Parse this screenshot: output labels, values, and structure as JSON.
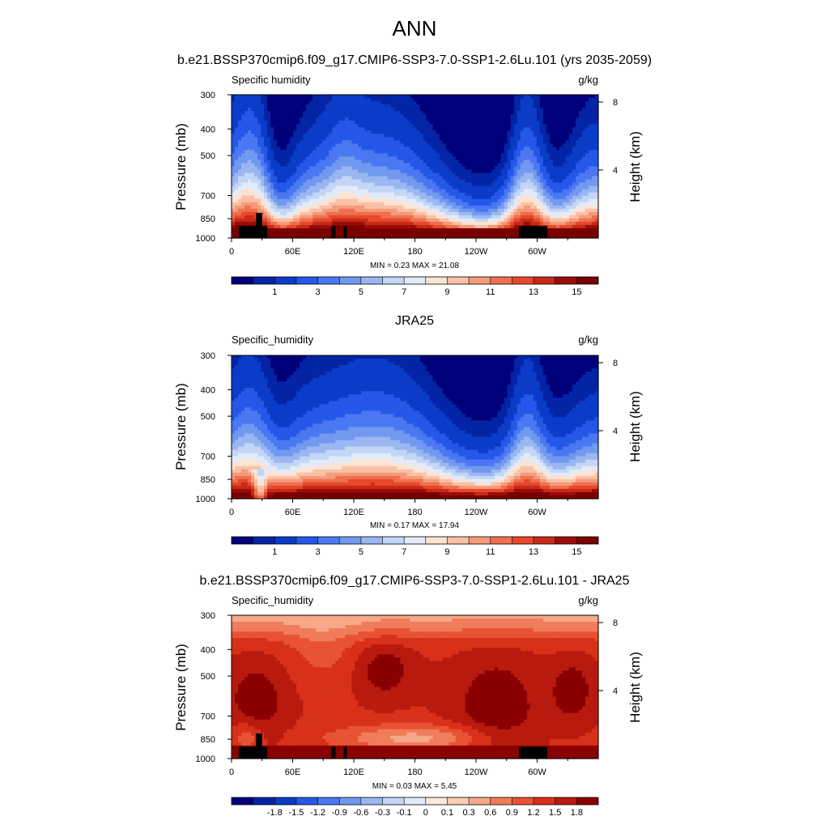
{
  "figure": {
    "title": "ANN",
    "palette_specific_humidity": [
      "#00007a",
      "#0424a6",
      "#0a3cc8",
      "#2557e8",
      "#4a78f2",
      "#7299f0",
      "#9bb7f2",
      "#c3d6f6",
      "#e2ebfa",
      "#fce3d3",
      "#f9c1a6",
      "#f49b7a",
      "#ee7050",
      "#e6492b",
      "#c92a18",
      "#9a0d0a",
      "#7a0000"
    ],
    "palette_difference": [
      "#00007a",
      "#0424a6",
      "#0a3cc8",
      "#2557e8",
      "#4a78f2",
      "#7299f0",
      "#9bb7f2",
      "#c3d6f6",
      "#e2ebfa",
      "#fde8dc",
      "#fbcdb4",
      "#f6a889",
      "#f07c5a",
      "#e85333",
      "#d9301a",
      "#b81a0e",
      "#8a0000"
    ],
    "topography_color": "#000000"
  },
  "chart_data": [
    {
      "type": "heatmap",
      "title": "b.e21.BSSP370cmip6.f09_g17.CMIP6-SSP3-7.0-SSP1-2.6Lu.101 (yrs 2035-2059)",
      "left_label": "Specific humidity",
      "right_label": "g/kg",
      "ylabel": "Pressure (mb)",
      "ylabel_right": "Height (km)",
      "x_ticks": [
        "0",
        "60E",
        "120E",
        "180",
        "120W",
        "60W"
      ],
      "x_tick_values": [
        0,
        60,
        120,
        180,
        240,
        300
      ],
      "xlim": [
        0,
        360
      ],
      "y_ticks": [
        "300",
        "400",
        "500",
        "700",
        "850",
        "1000"
      ],
      "y_tick_values": [
        300,
        400,
        500,
        700,
        850,
        1000
      ],
      "ylim": [
        300,
        1000
      ],
      "y_scale": "log",
      "y_right_ticks": [
        "8",
        "4"
      ],
      "y_right_tick_values": [
        8,
        4
      ],
      "stats_text": "MIN =   0.23  MAX =  21.08",
      "min": 0.23,
      "max": 21.08,
      "colorbar_labels": [
        "1",
        "3",
        "5",
        "7",
        "9",
        "11",
        "13",
        "15"
      ],
      "colorbar_label_levels": [
        1,
        3,
        5,
        7,
        9,
        11,
        13,
        15
      ],
      "levels": [
        0.5,
        1,
        2,
        3,
        4,
        5,
        6,
        7,
        8,
        9,
        10,
        11,
        12,
        13,
        14,
        15
      ],
      "field": "humidity",
      "has_topography": true
    },
    {
      "type": "heatmap",
      "title": "JRA25",
      "left_label": "Specific_humidity",
      "right_label": "g/kg",
      "ylabel": "Pressure (mb)",
      "ylabel_right": "Height (km)",
      "x_ticks": [
        "0",
        "60E",
        "120E",
        "180",
        "120W",
        "60W"
      ],
      "x_tick_values": [
        0,
        60,
        120,
        180,
        240,
        300
      ],
      "xlim": [
        0,
        360
      ],
      "y_ticks": [
        "300",
        "400",
        "500",
        "700",
        "850",
        "1000"
      ],
      "y_tick_values": [
        300,
        400,
        500,
        700,
        850,
        1000
      ],
      "ylim": [
        300,
        1000
      ],
      "y_scale": "log",
      "y_right_ticks": [
        "8",
        "4"
      ],
      "y_right_tick_values": [
        8,
        4
      ],
      "stats_text": "MIN =   0.17  MAX =  17.94",
      "min": 0.17,
      "max": 17.94,
      "colorbar_labels": [
        "1",
        "3",
        "5",
        "7",
        "9",
        "11",
        "13",
        "15"
      ],
      "colorbar_label_levels": [
        1,
        3,
        5,
        7,
        9,
        11,
        13,
        15
      ],
      "levels": [
        0.5,
        1,
        2,
        3,
        4,
        5,
        6,
        7,
        8,
        9,
        10,
        11,
        12,
        13,
        14,
        15
      ],
      "field": "humidity_obs",
      "has_topography": false
    },
    {
      "type": "heatmap",
      "title": "b.e21.BSSP370cmip6.f09_g17.CMIP6-SSP3-7.0-SSP1-2.6Lu.101 - JRA25",
      "left_label": "Specific_humidity",
      "right_label": "g/kg",
      "ylabel": "Pressure (mb)",
      "ylabel_right": "Height (km)",
      "x_ticks": [
        "0",
        "60E",
        "120E",
        "180",
        "120W",
        "60W"
      ],
      "x_tick_values": [
        0,
        60,
        120,
        180,
        240,
        300
      ],
      "xlim": [
        0,
        360
      ],
      "y_ticks": [
        "300",
        "400",
        "500",
        "700",
        "850",
        "1000"
      ],
      "y_tick_values": [
        300,
        400,
        500,
        700,
        850,
        1000
      ],
      "ylim": [
        300,
        1000
      ],
      "y_scale": "log",
      "y_right_ticks": [
        "8",
        "4"
      ],
      "y_right_tick_values": [
        8,
        4
      ],
      "stats_text": "MIN =   0.03  MAX =   5.45",
      "min": 0.03,
      "max": 5.45,
      "colorbar_labels": [
        "-1.8",
        "-1.5",
        "-1.2",
        "-0.9",
        "-0.6",
        "-0.3",
        "-0.1",
        "0",
        "0.1",
        "0.3",
        "0.6",
        "0.9",
        "1.2",
        "1.5",
        "1.8"
      ],
      "colorbar_label_levels": [
        -1.8,
        -1.5,
        -1.2,
        -0.9,
        -0.6,
        -0.3,
        -0.1,
        0,
        0.1,
        0.3,
        0.6,
        0.9,
        1.2,
        1.5,
        1.8
      ],
      "levels": [
        -2.1,
        -1.8,
        -1.5,
        -1.2,
        -0.9,
        -0.6,
        -0.3,
        -0.1,
        0,
        0.1,
        0.3,
        0.6,
        0.9,
        1.2,
        1.5,
        1.8
      ],
      "field": "difference",
      "has_topography": true
    }
  ]
}
